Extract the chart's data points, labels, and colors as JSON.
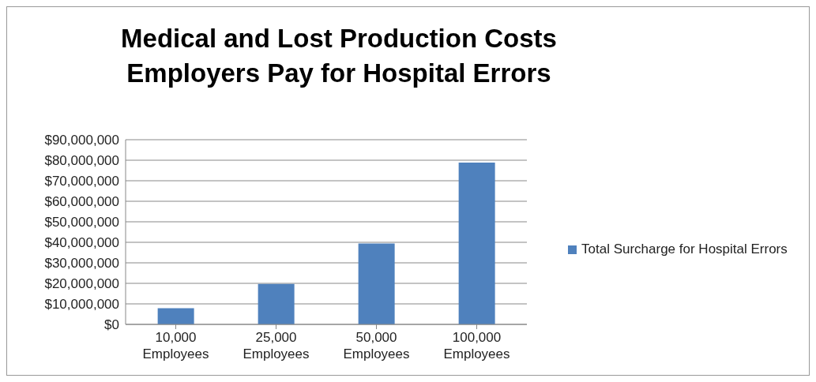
{
  "chart_data": {
    "type": "bar",
    "title": "Medical and Lost Production Costs\nEmployers Pay for Hospital Errors",
    "categories": [
      "10,000 Employees",
      "25,000 Employees",
      "50,000 Employees",
      "100,000 Employees"
    ],
    "series": [
      {
        "name": "Total Surcharge for Hospital Errors",
        "color": "#4f81bd",
        "values": [
          7900000,
          19700000,
          39400000,
          78800000
        ]
      }
    ],
    "ylim": [
      0,
      90000000
    ],
    "yticks": [
      {
        "value": 0,
        "label": "$0"
      },
      {
        "value": 10000000,
        "label": "$10,000,000"
      },
      {
        "value": 20000000,
        "label": "$20,000,000"
      },
      {
        "value": 30000000,
        "label": "$30,000,000"
      },
      {
        "value": 40000000,
        "label": "$40,000,000"
      },
      {
        "value": 50000000,
        "label": "$50,000,000"
      },
      {
        "value": 60000000,
        "label": "$60,000,000"
      },
      {
        "value": 70000000,
        "label": "$70,000,000"
      },
      {
        "value": 80000000,
        "label": "$80,000,000"
      },
      {
        "value": 90000000,
        "label": "$90,000,000"
      }
    ],
    "grid": "y",
    "legend": "right"
  }
}
